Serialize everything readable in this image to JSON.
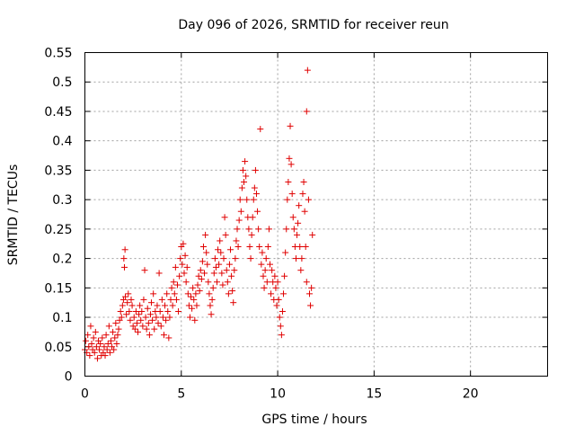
{
  "chart_data": {
    "type": "scatter",
    "title": "Day 096 of 2026, SRMTID for receiver reun",
    "xlabel": "GPS time / hours",
    "ylabel": "SRMTID / TECUs",
    "xlim": [
      0,
      24
    ],
    "ylim": [
      0,
      0.55
    ],
    "grid": true,
    "x_ticks": [
      0,
      5,
      10,
      15,
      20
    ],
    "x_tick_labels": [
      "0",
      "5",
      "10",
      "15",
      "20"
    ],
    "y_ticks": [
      0,
      0.05,
      0.1,
      0.15,
      0.2,
      0.25,
      0.3,
      0.35,
      0.4,
      0.45,
      0.5,
      0.55
    ],
    "y_tick_labels": [
      "0",
      "0.05",
      "0.1",
      "0.15",
      "0.2",
      "0.25",
      "0.3",
      "0.35",
      "0.4",
      "0.45",
      "0.5",
      "0.55"
    ],
    "marker": "+",
    "color": "#e00000",
    "series": [
      {
        "name": "SRMTID",
        "points": [
          [
            0.0,
            0.045
          ],
          [
            0.05,
            0.06
          ],
          [
            0.1,
            0.04
          ],
          [
            0.15,
            0.07
          ],
          [
            0.2,
            0.05
          ],
          [
            0.25,
            0.035
          ],
          [
            0.3,
            0.085
          ],
          [
            0.35,
            0.055
          ],
          [
            0.4,
            0.045
          ],
          [
            0.45,
            0.065
          ],
          [
            0.5,
            0.04
          ],
          [
            0.55,
            0.075
          ],
          [
            0.6,
            0.05
          ],
          [
            0.65,
            0.03
          ],
          [
            0.7,
            0.06
          ],
          [
            0.75,
            0.045
          ],
          [
            0.8,
            0.055
          ],
          [
            0.85,
            0.035
          ],
          [
            0.9,
            0.065
          ],
          [
            0.95,
            0.04
          ],
          [
            1.0,
            0.05
          ],
          [
            1.05,
            0.035
          ],
          [
            1.1,
            0.07
          ],
          [
            1.15,
            0.045
          ],
          [
            1.2,
            0.055
          ],
          [
            1.25,
            0.085
          ],
          [
            1.3,
            0.04
          ],
          [
            1.35,
            0.06
          ],
          [
            1.4,
            0.05
          ],
          [
            1.45,
            0.075
          ],
          [
            1.5,
            0.045
          ],
          [
            1.55,
            0.065
          ],
          [
            1.6,
            0.09
          ],
          [
            1.65,
            0.055
          ],
          [
            1.7,
            0.07
          ],
          [
            1.75,
            0.08
          ],
          [
            1.8,
            0.095
          ],
          [
            1.85,
            0.11
          ],
          [
            1.9,
            0.1
          ],
          [
            1.95,
            0.12
          ],
          [
            2.0,
            0.13
          ],
          [
            2.02,
            0.2
          ],
          [
            2.05,
            0.185
          ],
          [
            2.08,
            0.215
          ],
          [
            2.1,
            0.135
          ],
          [
            2.15,
            0.105
          ],
          [
            2.2,
            0.125
          ],
          [
            2.25,
            0.14
          ],
          [
            2.3,
            0.11
          ],
          [
            2.35,
            0.095
          ],
          [
            2.4,
            0.13
          ],
          [
            2.45,
            0.12
          ],
          [
            2.5,
            0.085
          ],
          [
            2.55,
            0.1
          ],
          [
            2.6,
            0.08
          ],
          [
            2.65,
            0.11
          ],
          [
            2.7,
            0.09
          ],
          [
            2.75,
            0.075
          ],
          [
            2.8,
            0.105
          ],
          [
            2.85,
            0.12
          ],
          [
            2.9,
            0.095
          ],
          [
            2.95,
            0.11
          ],
          [
            3.0,
            0.085
          ],
          [
            3.05,
            0.13
          ],
          [
            3.1,
            0.18
          ],
          [
            3.15,
            0.1
          ],
          [
            3.2,
            0.08
          ],
          [
            3.25,
            0.115
          ],
          [
            3.3,
            0.09
          ],
          [
            3.35,
            0.07
          ],
          [
            3.4,
            0.105
          ],
          [
            3.45,
            0.125
          ],
          [
            3.5,
            0.095
          ],
          [
            3.55,
            0.14
          ],
          [
            3.6,
            0.08
          ],
          [
            3.65,
            0.11
          ],
          [
            3.7,
            0.1
          ],
          [
            3.75,
            0.12
          ],
          [
            3.8,
            0.09
          ],
          [
            3.85,
            0.175
          ],
          [
            3.9,
            0.11
          ],
          [
            3.95,
            0.085
          ],
          [
            4.0,
            0.13
          ],
          [
            4.05,
            0.1
          ],
          [
            4.1,
            0.07
          ],
          [
            4.15,
            0.12
          ],
          [
            4.2,
            0.095
          ],
          [
            4.25,
            0.14
          ],
          [
            4.3,
            0.11
          ],
          [
            4.35,
            0.065
          ],
          [
            4.4,
            0.1
          ],
          [
            4.45,
            0.13
          ],
          [
            4.5,
            0.15
          ],
          [
            4.55,
            0.12
          ],
          [
            4.6,
            0.16
          ],
          [
            4.65,
            0.14
          ],
          [
            4.7,
            0.185
          ],
          [
            4.75,
            0.13
          ],
          [
            4.8,
            0.155
          ],
          [
            4.85,
            0.11
          ],
          [
            4.9,
            0.17
          ],
          [
            4.95,
            0.2
          ],
          [
            5.0,
            0.22
          ],
          [
            5.05,
            0.19
          ],
          [
            5.1,
            0.225
          ],
          [
            5.15,
            0.175
          ],
          [
            5.2,
            0.205
          ],
          [
            5.25,
            0.16
          ],
          [
            5.3,
            0.185
          ],
          [
            5.35,
            0.14
          ],
          [
            5.4,
            0.12
          ],
          [
            5.45,
            0.1
          ],
          [
            5.5,
            0.135
          ],
          [
            5.55,
            0.115
          ],
          [
            5.6,
            0.15
          ],
          [
            5.65,
            0.13
          ],
          [
            5.7,
            0.095
          ],
          [
            5.75,
            0.14
          ],
          [
            5.8,
            0.12
          ],
          [
            5.85,
            0.155
          ],
          [
            5.9,
            0.17
          ],
          [
            5.95,
            0.145
          ],
          [
            6.0,
            0.18
          ],
          [
            6.05,
            0.165
          ],
          [
            6.1,
            0.195
          ],
          [
            6.15,
            0.22
          ],
          [
            6.2,
            0.175
          ],
          [
            6.25,
            0.24
          ],
          [
            6.3,
            0.21
          ],
          [
            6.35,
            0.19
          ],
          [
            6.4,
            0.16
          ],
          [
            6.45,
            0.14
          ],
          [
            6.5,
            0.12
          ],
          [
            6.55,
            0.105
          ],
          [
            6.6,
            0.13
          ],
          [
            6.65,
            0.15
          ],
          [
            6.7,
            0.175
          ],
          [
            6.75,
            0.2
          ],
          [
            6.8,
            0.185
          ],
          [
            6.85,
            0.16
          ],
          [
            6.9,
            0.215
          ],
          [
            6.95,
            0.19
          ],
          [
            7.0,
            0.23
          ],
          [
            7.05,
            0.21
          ],
          [
            7.1,
            0.175
          ],
          [
            7.15,
            0.155
          ],
          [
            7.2,
            0.2
          ],
          [
            7.25,
            0.27
          ],
          [
            7.3,
            0.24
          ],
          [
            7.35,
            0.18
          ],
          [
            7.4,
            0.16
          ],
          [
            7.45,
            0.14
          ],
          [
            7.5,
            0.19
          ],
          [
            7.55,
            0.215
          ],
          [
            7.6,
            0.17
          ],
          [
            7.65,
            0.145
          ],
          [
            7.7,
            0.125
          ],
          [
            7.75,
            0.18
          ],
          [
            7.8,
            0.2
          ],
          [
            7.85,
            0.23
          ],
          [
            7.9,
            0.25
          ],
          [
            7.95,
            0.22
          ],
          [
            8.0,
            0.265
          ],
          [
            8.05,
            0.3
          ],
          [
            8.1,
            0.28
          ],
          [
            8.15,
            0.32
          ],
          [
            8.2,
            0.35
          ],
          [
            8.25,
            0.33
          ],
          [
            8.3,
            0.365
          ],
          [
            8.35,
            0.34
          ],
          [
            8.4,
            0.3
          ],
          [
            8.45,
            0.27
          ],
          [
            8.5,
            0.25
          ],
          [
            8.55,
            0.22
          ],
          [
            8.6,
            0.2
          ],
          [
            8.65,
            0.24
          ],
          [
            8.7,
            0.27
          ],
          [
            8.75,
            0.3
          ],
          [
            8.8,
            0.32
          ],
          [
            8.85,
            0.35
          ],
          [
            8.9,
            0.31
          ],
          [
            8.95,
            0.28
          ],
          [
            9.0,
            0.25
          ],
          [
            9.05,
            0.22
          ],
          [
            9.1,
            0.42
          ],
          [
            9.15,
            0.19
          ],
          [
            9.2,
            0.21
          ],
          [
            9.25,
            0.17
          ],
          [
            9.3,
            0.15
          ],
          [
            9.35,
            0.18
          ],
          [
            9.4,
            0.2
          ],
          [
            9.45,
            0.16
          ],
          [
            9.5,
            0.22
          ],
          [
            9.55,
            0.25
          ],
          [
            9.6,
            0.19
          ],
          [
            9.65,
            0.14
          ],
          [
            9.7,
            0.18
          ],
          [
            9.75,
            0.16
          ],
          [
            9.8,
            0.13
          ],
          [
            9.85,
            0.17
          ],
          [
            9.9,
            0.15
          ],
          [
            9.95,
            0.12
          ],
          [
            10.0,
            0.16
          ],
          [
            10.05,
            0.13
          ],
          [
            10.1,
            0.1
          ],
          [
            10.15,
            0.085
          ],
          [
            10.2,
            0.07
          ],
          [
            10.25,
            0.11
          ],
          [
            10.3,
            0.14
          ],
          [
            10.35,
            0.17
          ],
          [
            10.4,
            0.21
          ],
          [
            10.45,
            0.25
          ],
          [
            10.5,
            0.3
          ],
          [
            10.55,
            0.33
          ],
          [
            10.6,
            0.37
          ],
          [
            10.65,
            0.425
          ],
          [
            10.7,
            0.36
          ],
          [
            10.75,
            0.31
          ],
          [
            10.8,
            0.27
          ],
          [
            10.85,
            0.25
          ],
          [
            10.9,
            0.22
          ],
          [
            10.95,
            0.2
          ],
          [
            11.0,
            0.24
          ],
          [
            11.05,
            0.26
          ],
          [
            11.1,
            0.29
          ],
          [
            11.15,
            0.22
          ],
          [
            11.2,
            0.18
          ],
          [
            11.25,
            0.2
          ],
          [
            11.3,
            0.31
          ],
          [
            11.35,
            0.33
          ],
          [
            11.4,
            0.28
          ],
          [
            11.45,
            0.22
          ],
          [
            11.5,
            0.16
          ],
          [
            11.5,
            0.45
          ],
          [
            11.55,
            0.52
          ],
          [
            11.6,
            0.3
          ],
          [
            11.65,
            0.14
          ],
          [
            11.7,
            0.12
          ],
          [
            11.75,
            0.15
          ],
          [
            11.8,
            0.24
          ]
        ]
      }
    ]
  }
}
